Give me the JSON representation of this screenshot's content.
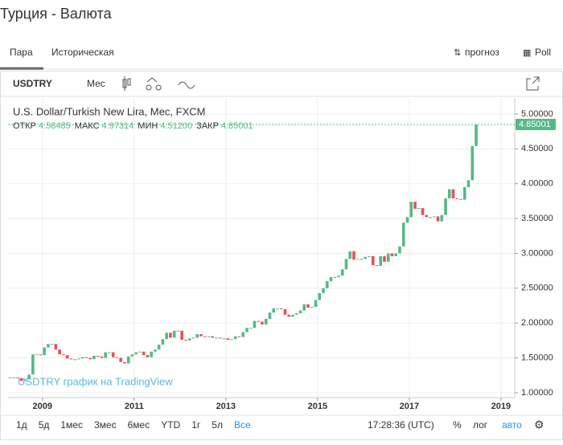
{
  "header": {
    "title": "Турция - Валюта"
  },
  "tabs": [
    "Пара",
    "Историческая"
  ],
  "actions": [
    "прогноз",
    "Poll"
  ],
  "toolbar": {
    "symbol": "USDTRY",
    "interval": "Мес"
  },
  "chart_data": {
    "type": "candlestick",
    "title": "U.S. Dollar/Turkish New Lira, Мес, FXCM",
    "legend": [
      {
        "name": "ОТКР",
        "value": "4.58485"
      },
      {
        "name": "МАКС",
        "value": "4.97314"
      },
      {
        "name": "МИН",
        "value": "4.51200"
      },
      {
        "name": "ЗАКР",
        "value": "4.85001"
      }
    ],
    "closes": [
      1.22,
      1.22,
      1.21,
      1.17,
      1.19,
      1.26,
      1.55,
      1.55,
      1.54,
      1.65,
      1.7,
      1.7,
      1.62,
      1.55,
      1.54,
      1.49,
      1.48,
      1.48,
      1.49,
      1.51,
      1.5,
      1.48,
      1.53,
      1.52,
      1.5,
      1.58,
      1.58,
      1.51,
      1.5,
      1.44,
      1.42,
      1.52,
      1.55,
      1.58,
      1.59,
      1.54,
      1.51,
      1.59,
      1.62,
      1.69,
      1.77,
      1.86,
      1.79,
      1.89,
      1.89,
      1.76,
      1.75,
      1.78,
      1.79,
      1.84,
      1.81,
      1.8,
      1.81,
      1.79,
      1.79,
      1.78,
      1.78,
      1.76,
      1.77,
      1.81,
      1.8,
      1.87,
      1.93,
      1.93,
      2.03,
      2.02,
      1.98,
      2.06,
      2.15,
      2.21,
      2.21,
      2.2,
      2.12,
      2.09,
      2.12,
      2.14,
      2.18,
      2.27,
      2.22,
      2.23,
      2.33,
      2.43,
      2.5,
      2.6,
      2.66,
      2.66,
      2.68,
      2.77,
      2.92,
      3.03,
      2.91,
      2.92,
      2.92,
      2.95,
      2.96,
      2.83,
      2.82,
      2.96,
      2.88,
      3.0,
      2.96,
      3.0,
      3.1,
      3.44,
      3.52,
      3.74,
      3.64,
      3.65,
      3.55,
      3.52,
      3.52,
      3.53,
      3.46,
      3.55,
      3.79,
      3.92,
      3.79,
      3.78,
      3.77,
      3.95,
      4.05,
      4.54,
      4.85001
    ],
    "up_color": "#53b987",
    "down_color": "#eb4d5c",
    "last_price": {
      "value": 4.85001,
      "label": "4.85001"
    },
    "xlim": [
      2008.25,
      2019.3
    ],
    "xticks": [
      2009,
      2011,
      2013,
      2015,
      2017,
      2019
    ],
    "ylim": [
      0.93,
      5.23
    ],
    "yticks": [
      {
        "value": 1,
        "label": "1.00000"
      },
      {
        "value": 1.5,
        "label": "1.50000"
      },
      {
        "value": 2,
        "label": "2.00000"
      },
      {
        "value": 2.5,
        "label": "2.50000"
      },
      {
        "value": 3,
        "label": "3.00000"
      },
      {
        "value": 3.5,
        "label": "3.50000"
      },
      {
        "value": 4,
        "label": "4.00000"
      },
      {
        "value": 4.5,
        "label": "4.50000"
      },
      {
        "value": 5,
        "label": "5.00000"
      }
    ],
    "grid": true,
    "watermark": "USDTRY график на TradingView"
  },
  "footer": {
    "ranges": [
      "1д",
      "5д",
      "1мес",
      "3мес",
      "6мес",
      "YTD",
      "1г",
      "5л",
      "Все"
    ],
    "time": "17:28:36 (UTC)",
    "scale_options": [
      "%",
      "лог",
      "авто"
    ]
  }
}
